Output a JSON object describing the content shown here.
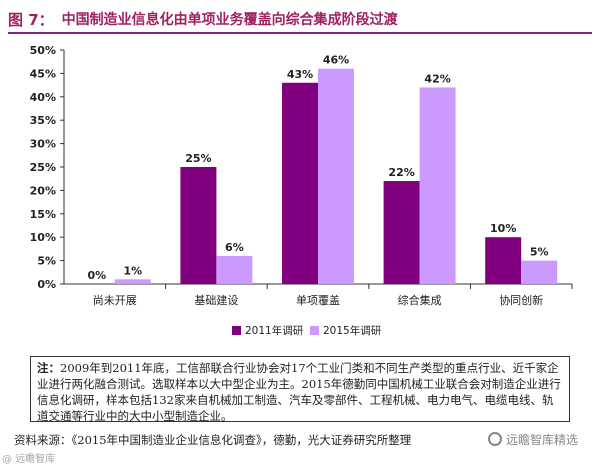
{
  "figure": {
    "label": "图 7：",
    "title": "中国制造业信息化由单项业务覆盖向综合集成阶段过渡"
  },
  "chart_data": {
    "type": "bar",
    "categories": [
      "尚未开展",
      "基础建设",
      "单项覆盖",
      "综合集成",
      "协同创新"
    ],
    "series": [
      {
        "name": "2011年调研",
        "values": [
          0,
          25,
          43,
          22,
          10
        ],
        "labels": [
          "0%",
          "25%",
          "43%",
          "22%",
          "10%"
        ],
        "color": "#800080"
      },
      {
        "name": "2015年调研",
        "values": [
          1,
          6,
          46,
          42,
          5
        ],
        "labels": [
          "1%",
          "6%",
          "46%",
          "42%",
          "5%"
        ],
        "color": "#cc99ff"
      }
    ],
    "ylim": [
      0,
      50
    ],
    "yticks": [
      "0%",
      "5%",
      "10%",
      "15%",
      "20%",
      "25%",
      "30%",
      "35%",
      "40%",
      "45%",
      "50%"
    ],
    "grid": false,
    "legend_position": "bottom"
  },
  "note": {
    "label": "注：",
    "text": "2009年到2011年底，工信部联合行业协会对17个工业门类和不同生产类型的重点行业、近千家企业进行两化融合测试。选取样本以大中型企业为主。2015年德勤同中国机械工业联合会对制造企业进行信息化调研，样本包括132家来自机械加工制造、汽车及零部件、工程机械、电力电气、电缆电线、轨道交通等行业中的大中小型制造企业。"
  },
  "source": {
    "text": "资料来源：《2015年中国制造业企业信息化调查》，德勤，光大证券研究所整理"
  },
  "watermark": {
    "text": "远瞻智库精选",
    "corner": "@ 远瞻智库"
  }
}
